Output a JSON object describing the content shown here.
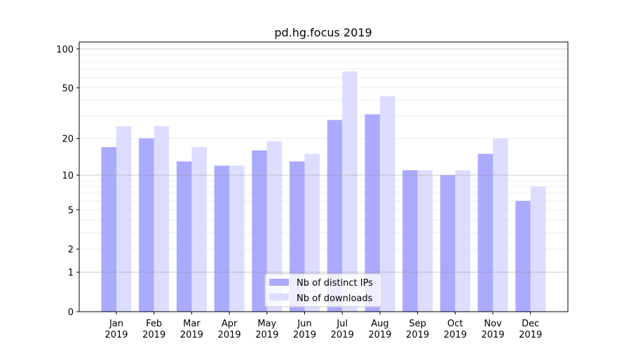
{
  "chart_data": {
    "type": "bar",
    "title": "pd.hg.focus 2019",
    "xlabel": "",
    "ylabel": "",
    "yscale": "log1p",
    "ylim": [
      0,
      113
    ],
    "yticks": [
      0,
      1,
      2,
      5,
      10,
      20,
      50,
      100
    ],
    "ytick_labels": [
      "0",
      "1",
      "2",
      "5",
      "10",
      "20",
      "50",
      "100"
    ],
    "grid": true,
    "legend_position": "bottom-center",
    "categories": [
      [
        "Jan",
        "2019"
      ],
      [
        "Feb",
        "2019"
      ],
      [
        "Mar",
        "2019"
      ],
      [
        "Apr",
        "2019"
      ],
      [
        "May",
        "2019"
      ],
      [
        "Jun",
        "2019"
      ],
      [
        "Jul",
        "2019"
      ],
      [
        "Aug",
        "2019"
      ],
      [
        "Sep",
        "2019"
      ],
      [
        "Oct",
        "2019"
      ],
      [
        "Nov",
        "2019"
      ],
      [
        "Dec",
        "2019"
      ]
    ],
    "series": [
      {
        "name": "Nb of distinct IPs",
        "color": "#aaaaff",
        "values": [
          17,
          20,
          13,
          12,
          16,
          13,
          28,
          31,
          11,
          10,
          15,
          6
        ]
      },
      {
        "name": "Nb of downloads",
        "color": "#ddddff",
        "values": [
          25,
          25,
          17,
          12,
          19,
          15,
          67,
          43,
          11,
          11,
          20,
          8
        ]
      }
    ]
  }
}
